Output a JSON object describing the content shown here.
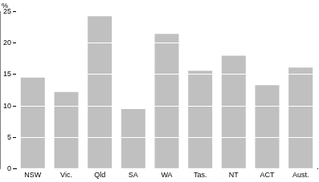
{
  "chart_data": {
    "type": "bar",
    "y_label": "%",
    "categories": [
      "NSW",
      "Vic.",
      "Qld",
      "SA",
      "WA",
      "Tas.",
      "NT",
      "ACT",
      "Aust."
    ],
    "values": [
      14.5,
      12.2,
      24.3,
      9.5,
      21.5,
      15.6,
      18.0,
      13.3,
      16.1
    ],
    "color": "#c0c0c0",
    "ylim": [
      0,
      25
    ],
    "yticks": [
      0,
      5,
      10,
      15,
      20,
      25
    ],
    "grid": true
  }
}
